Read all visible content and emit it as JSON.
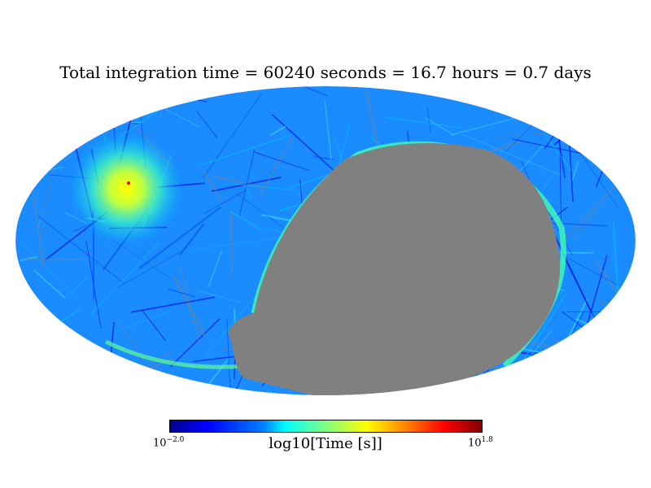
{
  "chart_data": {
    "type": "heatmap",
    "projection": "mollweide",
    "title": "Total integration time = 60240 seconds = 16.7 hours = 0.7 days",
    "colorbar": {
      "label": "log10[Time [s]]",
      "min_base": "10",
      "min_exp": "−2.0",
      "max_base": "10",
      "max_exp": "1.8",
      "range_log10": [
        -2.0,
        1.8
      ],
      "colormap": "jet"
    },
    "mask_color": "#808080"
  }
}
